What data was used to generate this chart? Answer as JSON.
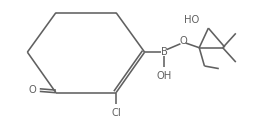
{
  "bg_color": "#ffffff",
  "line_color": "#606060",
  "text_color": "#606060",
  "line_width": 1.15,
  "font_size": 7.2,
  "xlim": [
    0,
    10
  ],
  "ylim": [
    0,
    5
  ]
}
